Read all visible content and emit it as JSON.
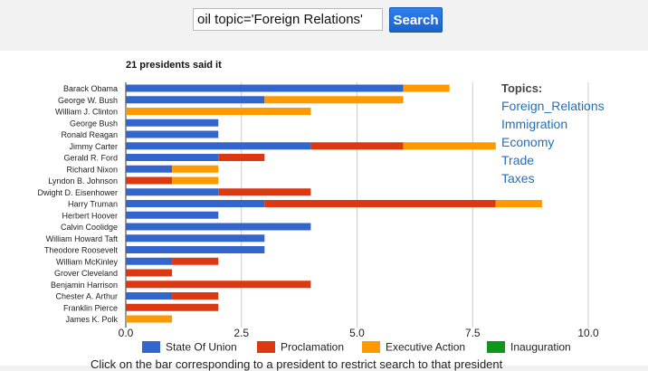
{
  "search": {
    "value": "oil topic='Foreign Relations'",
    "button_label": "Search"
  },
  "result_summary": "21 presidents said it",
  "topics": {
    "title": "Topics:",
    "items": [
      "Foreign_Relations",
      "Immigration",
      "Economy",
      "Trade",
      "Taxes"
    ]
  },
  "footer_hint": "Click on the bar corresponding to a president to restrict search to that president",
  "chart_data": {
    "type": "bar",
    "orientation": "horizontal",
    "stacked": true,
    "title": "21 presidents said it",
    "xlim": [
      0,
      10
    ],
    "x_ticks": [
      "0.0",
      "2.5",
      "5.0",
      "7.5",
      "10.0"
    ],
    "grid": true,
    "legend_position": "bottom",
    "categories": [
      "Barack Obama",
      "George W. Bush",
      "William J. Clinton",
      "George Bush",
      "Ronald Reagan",
      "Jimmy Carter",
      "Gerald R. Ford",
      "Richard Nixon",
      "Lyndon B. Johnson",
      "Dwight D. Eisenhower",
      "Harry Truman",
      "Herbert Hoover",
      "Calvin Coolidge",
      "William Howard Taft",
      "Theodore Roosevelt",
      "William McKinley",
      "Grover Cleveland",
      "Benjamin Harrison",
      "Chester A. Arthur",
      "Franklin Pierce",
      "James K. Polk"
    ],
    "series": [
      {
        "name": "State Of Union",
        "color": "#3366cc",
        "values": [
          6,
          3,
          0,
          2,
          2,
          4,
          2,
          1,
          0,
          2,
          3,
          2,
          4,
          3,
          3,
          1,
          0,
          0,
          1,
          0,
          0
        ]
      },
      {
        "name": "Proclamation",
        "color": "#dc3912",
        "values": [
          0,
          0,
          0,
          0,
          0,
          2,
          1,
          0,
          1,
          2,
          5,
          0,
          0,
          0,
          0,
          1,
          1,
          4,
          1,
          2,
          0
        ]
      },
      {
        "name": "Executive Action",
        "color": "#ff9900",
        "values": [
          1,
          3,
          4,
          0,
          0,
          2,
          0,
          1,
          1,
          0,
          1,
          0,
          0,
          0,
          0,
          0,
          0,
          0,
          0,
          0,
          1
        ]
      },
      {
        "name": "Inauguration",
        "color": "#109618",
        "values": [
          0,
          0,
          0,
          0,
          0,
          0,
          0,
          0,
          0,
          0,
          0,
          0,
          0,
          0,
          0,
          0,
          0,
          0,
          0,
          0,
          0
        ]
      }
    ]
  }
}
